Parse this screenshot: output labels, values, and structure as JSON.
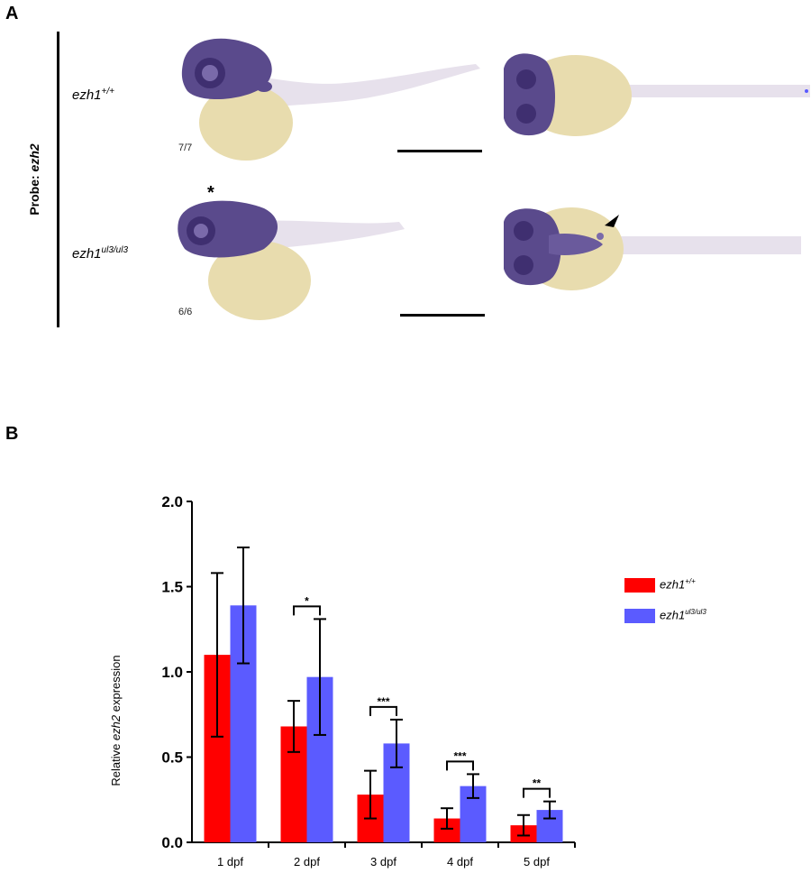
{
  "panel_a": {
    "letter": "A",
    "probe_label_prefix": "Probe: ",
    "probe_gene": "ezh2",
    "rows": [
      {
        "genotype_base": "ezh1",
        "genotype_sup": "+/+",
        "fraction": "7/7"
      },
      {
        "genotype_base": "ezh1",
        "genotype_sup": "ul3/ul3",
        "fraction": "6/6"
      }
    ],
    "asterisk": "*"
  },
  "panel_b": {
    "letter": "B"
  },
  "colors": {
    "wildtype": "#ff0000",
    "mutant": "#5b5bff",
    "stain": "#5a4a8c",
    "yolk": "#e8dcae"
  },
  "chart_data": {
    "type": "bar",
    "categories": [
      "1 dpf",
      "2 dpf",
      "3 dpf",
      "4 dpf",
      "5 dpf"
    ],
    "series": [
      {
        "name_base": "ezh1",
        "name_sup": "+/+",
        "values": [
          1.1,
          0.68,
          0.28,
          0.14,
          0.1
        ],
        "errors": [
          0.48,
          0.15,
          0.14,
          0.06,
          0.06
        ]
      },
      {
        "name_base": "ezh1",
        "name_sup": "ul3/ul3",
        "values": [
          1.39,
          0.97,
          0.58,
          0.33,
          0.19
        ],
        "errors": [
          0.34,
          0.34,
          0.14,
          0.07,
          0.05
        ]
      }
    ],
    "ylabel_prefix": "Relative ",
    "ylabel_gene": "ezh2",
    "ylabel_suffix": " expression",
    "ylim": [
      0,
      2.0
    ],
    "yticks": [
      "0.0",
      "0.5",
      "1.0",
      "1.5",
      "2.0"
    ],
    "significance": [
      "",
      "*",
      "***",
      "***",
      "**"
    ],
    "legend_position": "right"
  }
}
